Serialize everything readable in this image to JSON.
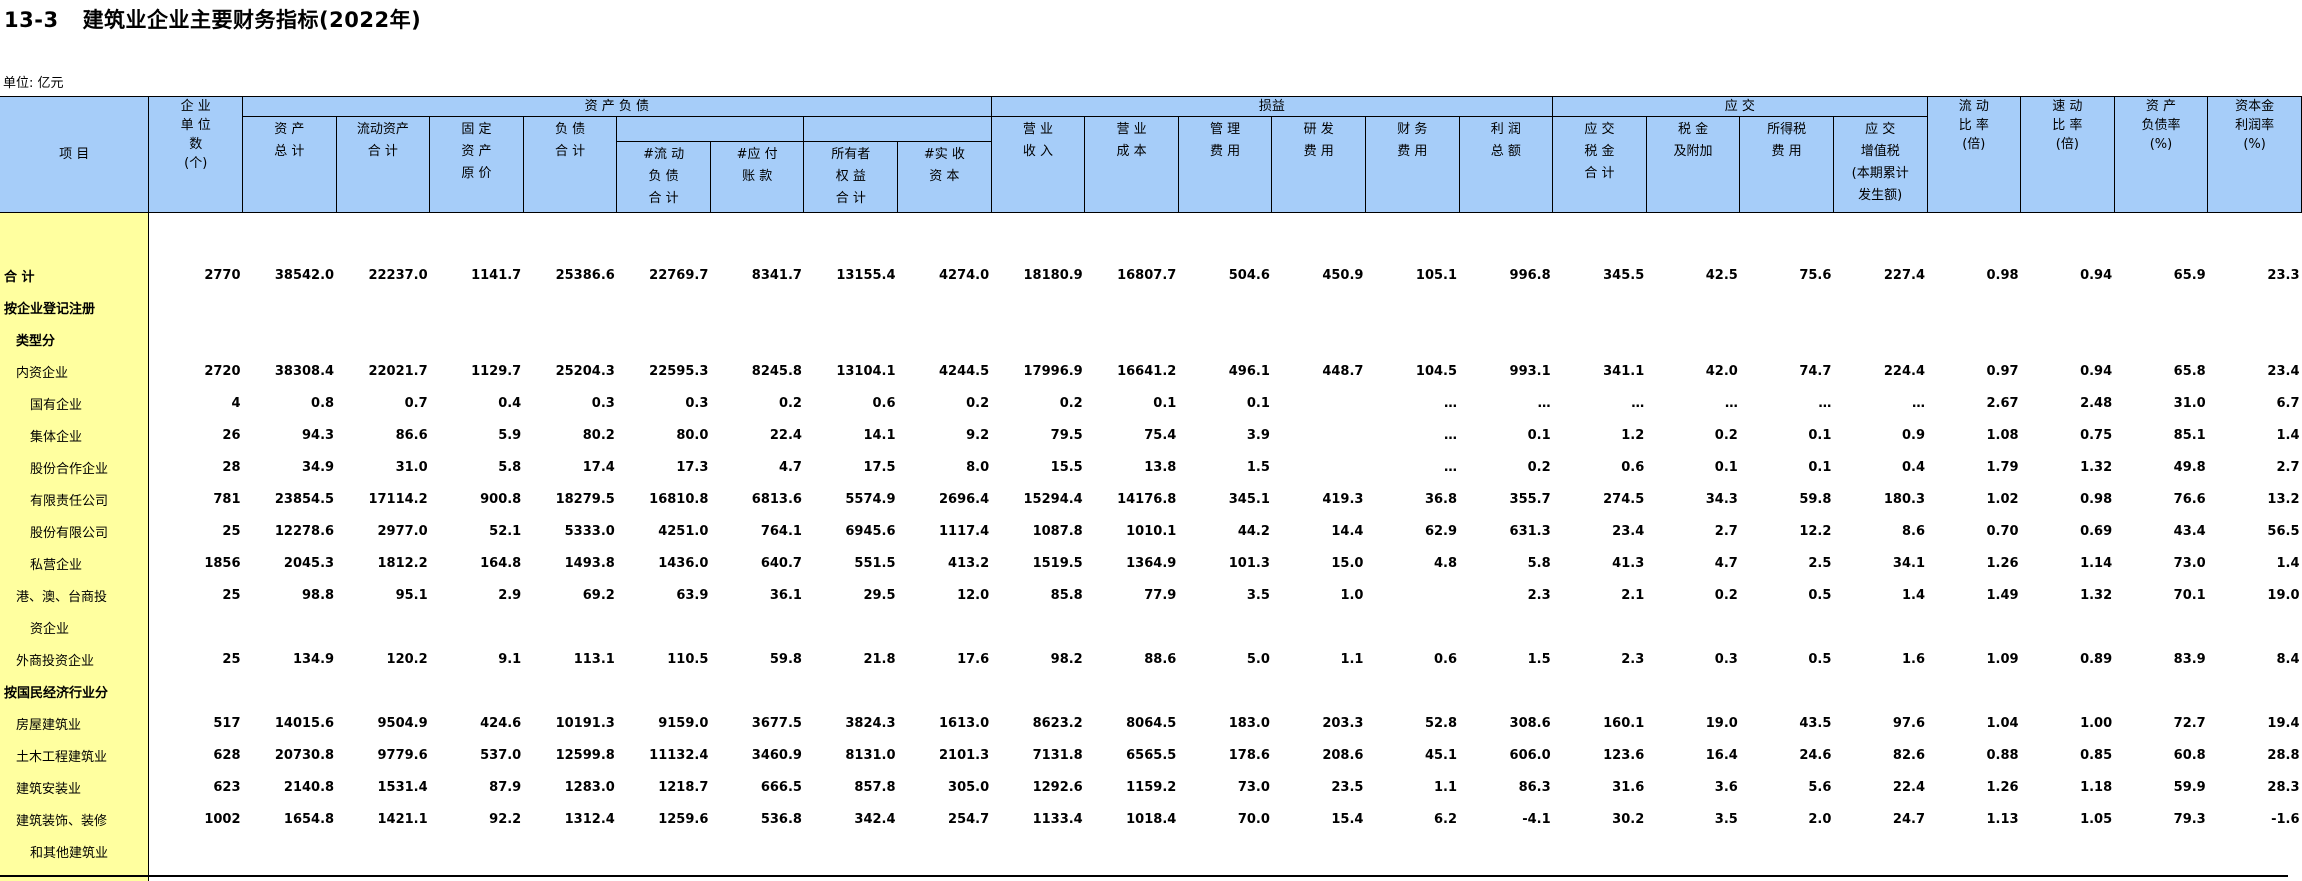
{
  "page": {
    "table_no": "13-3",
    "title": "建筑业企业主要财务指标(2022年)",
    "unit": "单位: 亿元"
  },
  "header": {
    "item": "项  目",
    "enterprise_count": "企 业\n单 位\n数\n(个)",
    "group_assets": "资  产  负  债",
    "group_pl": "损益",
    "group_tax": "应 交",
    "total_assets": "资 产\n总 计",
    "current_assets": "流动资产\n合  计",
    "fixed_assets": "固  定\n资 产\n原 价",
    "liabilities": "负 债\n合 计",
    "current_liabilities": "#流 动\n负 债\n合 计",
    "accounts_payable": "#应 付\n账 款",
    "owners_equity": "所有者\n权 益\n合 计",
    "paid_in_capital": "#实 收\n资 本",
    "revenue": "营  业\n收 入",
    "cost": "营  业\n成 本",
    "admin_expense": "管  理\n费 用",
    "rd_expense": "研 发\n费 用",
    "finance_expense": "财 务\n费 用",
    "total_profit": "利 润\n总 额",
    "tax_total": "应 交\n税 金\n合 计",
    "tax_surcharge": "税 金\n及附加",
    "income_tax": "所得税\n费 用",
    "vat": "应 交\n增值税\n(本期累计\n发生额)",
    "current_ratio": "流 动\n比 率\n(倍)",
    "quick_ratio": "速 动\n比 率\n(倍)",
    "debt_ratio": "资 产\n负债率\n(%)",
    "capital_profit_rate": "资本金\n利润率\n(%)"
  },
  "rows": [
    {
      "name": "合      计",
      "style": "bold",
      "v": [
        "2770",
        "38542.0",
        "22237.0",
        "1141.7",
        "25386.6",
        "22769.7",
        "8341.7",
        "13155.4",
        "4274.0",
        "18180.9",
        "16807.7",
        "504.6",
        "450.9",
        "105.1",
        "996.8",
        "345.5",
        "42.5",
        "75.6",
        "227.4",
        "0.98",
        "0.94",
        "65.9",
        "23.3"
      ]
    },
    {
      "name": "按企业登记注册",
      "style": "bold",
      "v": [
        "",
        "",
        "",
        "",
        "",
        "",
        "",
        "",
        "",
        "",
        "",
        "",
        "",
        "",
        "",
        "",
        "",
        "",
        "",
        "",
        "",
        "",
        ""
      ]
    },
    {
      "name": "类型分",
      "style": "bold indent1",
      "v": [
        "",
        "",
        "",
        "",
        "",
        "",
        "",
        "",
        "",
        "",
        "",
        "",
        "",
        "",
        "",
        "",
        "",
        "",
        "",
        "",
        "",
        "",
        ""
      ]
    },
    {
      "name": "内资企业",
      "style": "indent1",
      "v": [
        "2720",
        "38308.4",
        "22021.7",
        "1129.7",
        "25204.3",
        "22595.3",
        "8245.8",
        "13104.1",
        "4244.5",
        "17996.9",
        "16641.2",
        "496.1",
        "448.7",
        "104.5",
        "993.1",
        "341.1",
        "42.0",
        "74.7",
        "224.4",
        "0.97",
        "0.94",
        "65.8",
        "23.4"
      ]
    },
    {
      "name": "国有企业",
      "style": "indent2",
      "v": [
        "4",
        "0.8",
        "0.7",
        "0.4",
        "0.3",
        "0.3",
        "0.2",
        "0.6",
        "0.2",
        "0.2",
        "0.1",
        "0.1",
        "",
        "…",
        "…",
        "…",
        "…",
        "…",
        "…",
        "2.67",
        "2.48",
        "31.0",
        "6.7"
      ]
    },
    {
      "name": "集体企业",
      "style": "indent2",
      "v": [
        "26",
        "94.3",
        "86.6",
        "5.9",
        "80.2",
        "80.0",
        "22.4",
        "14.1",
        "9.2",
        "79.5",
        "75.4",
        "3.9",
        "",
        "…",
        "0.1",
        "1.2",
        "0.2",
        "0.1",
        "0.9",
        "1.08",
        "0.75",
        "85.1",
        "1.4"
      ]
    },
    {
      "name": "股份合作企业",
      "style": "indent2",
      "v": [
        "28",
        "34.9",
        "31.0",
        "5.8",
        "17.4",
        "17.3",
        "4.7",
        "17.5",
        "8.0",
        "15.5",
        "13.8",
        "1.5",
        "",
        "…",
        "0.2",
        "0.6",
        "0.1",
        "0.1",
        "0.4",
        "1.79",
        "1.32",
        "49.8",
        "2.7"
      ]
    },
    {
      "name": "有限责任公司",
      "style": "indent2",
      "v": [
        "781",
        "23854.5",
        "17114.2",
        "900.8",
        "18279.5",
        "16810.8",
        "6813.6",
        "5574.9",
        "2696.4",
        "15294.4",
        "14176.8",
        "345.1",
        "419.3",
        "36.8",
        "355.7",
        "274.5",
        "34.3",
        "59.8",
        "180.3",
        "1.02",
        "0.98",
        "76.6",
        "13.2"
      ]
    },
    {
      "name": "股份有限公司",
      "style": "indent2",
      "v": [
        "25",
        "12278.6",
        "2977.0",
        "52.1",
        "5333.0",
        "4251.0",
        "764.1",
        "6945.6",
        "1117.4",
        "1087.8",
        "1010.1",
        "44.2",
        "14.4",
        "62.9",
        "631.3",
        "23.4",
        "2.7",
        "12.2",
        "8.6",
        "0.70",
        "0.69",
        "43.4",
        "56.5"
      ]
    },
    {
      "name": "私营企业",
      "style": "indent2",
      "v": [
        "1856",
        "2045.3",
        "1812.2",
        "164.8",
        "1493.8",
        "1436.0",
        "640.7",
        "551.5",
        "413.2",
        "1519.5",
        "1364.9",
        "101.3",
        "15.0",
        "4.8",
        "5.8",
        "41.3",
        "4.7",
        "2.5",
        "34.1",
        "1.26",
        "1.14",
        "73.0",
        "1.4"
      ]
    },
    {
      "name": "港、澳、台商投",
      "style": "indent1",
      "v": [
        "25",
        "98.8",
        "95.1",
        "2.9",
        "69.2",
        "63.9",
        "36.1",
        "29.5",
        "12.0",
        "85.8",
        "77.9",
        "3.5",
        "1.0",
        "",
        "2.3",
        "2.1",
        "0.2",
        "0.5",
        "1.4",
        "1.49",
        "1.32",
        "70.1",
        "19.0"
      ]
    },
    {
      "name": "资企业",
      "style": "indent2",
      "v": [
        "",
        "",
        "",
        "",
        "",
        "",
        "",
        "",
        "",
        "",
        "",
        "",
        "",
        "",
        "",
        "",
        "",
        "",
        "",
        "",
        "",
        "",
        ""
      ]
    },
    {
      "name": "外商投资企业",
      "style": "indent1",
      "v": [
        "25",
        "134.9",
        "120.2",
        "9.1",
        "113.1",
        "110.5",
        "59.8",
        "21.8",
        "17.6",
        "98.2",
        "88.6",
        "5.0",
        "1.1",
        "0.6",
        "1.5",
        "2.3",
        "0.3",
        "0.5",
        "1.6",
        "1.09",
        "0.89",
        "83.9",
        "8.4"
      ]
    },
    {
      "name": "按国民经济行业分",
      "style": "bold",
      "v": [
        "",
        "",
        "",
        "",
        "",
        "",
        "",
        "",
        "",
        "",
        "",
        "",
        "",
        "",
        "",
        "",
        "",
        "",
        "",
        "",
        "",
        "",
        ""
      ]
    },
    {
      "name": "房屋建筑业",
      "style": "indent1",
      "v": [
        "517",
        "14015.6",
        "9504.9",
        "424.6",
        "10191.3",
        "9159.0",
        "3677.5",
        "3824.3",
        "1613.0",
        "8623.2",
        "8064.5",
        "183.0",
        "203.3",
        "52.8",
        "308.6",
        "160.1",
        "19.0",
        "43.5",
        "97.6",
        "1.04",
        "1.00",
        "72.7",
        "19.4"
      ]
    },
    {
      "name": "土木工程建筑业",
      "style": "indent1",
      "v": [
        "628",
        "20730.8",
        "9779.6",
        "537.0",
        "12599.8",
        "11132.4",
        "3460.9",
        "8131.0",
        "2101.3",
        "7131.8",
        "6565.5",
        "178.6",
        "208.6",
        "45.1",
        "606.0",
        "123.6",
        "16.4",
        "24.6",
        "82.6",
        "0.88",
        "0.85",
        "60.8",
        "28.8"
      ]
    },
    {
      "name": "建筑安装业",
      "style": "indent1",
      "v": [
        "623",
        "2140.8",
        "1531.4",
        "87.9",
        "1283.0",
        "1218.7",
        "666.5",
        "857.8",
        "305.0",
        "1292.6",
        "1159.2",
        "73.0",
        "23.5",
        "1.1",
        "86.3",
        "31.6",
        "3.6",
        "5.6",
        "22.4",
        "1.26",
        "1.18",
        "59.9",
        "28.3"
      ]
    },
    {
      "name": "建筑装饰、装修",
      "style": "indent1",
      "v": [
        "1002",
        "1654.8",
        "1421.1",
        "92.2",
        "1312.4",
        "1259.6",
        "536.8",
        "342.4",
        "254.7",
        "1133.4",
        "1018.4",
        "70.0",
        "15.4",
        "6.2",
        "-4.1",
        "30.2",
        "3.5",
        "2.0",
        "24.7",
        "1.13",
        "1.05",
        "79.3",
        "-1.6"
      ]
    },
    {
      "name": "和其他建筑业",
      "style": "indent2",
      "v": [
        "",
        "",
        "",
        "",
        "",
        "",
        "",
        "",
        "",
        "",
        "",
        "",
        "",
        "",
        "",
        "",
        "",
        "",
        "",
        "",
        "",
        "",
        ""
      ]
    }
  ]
}
